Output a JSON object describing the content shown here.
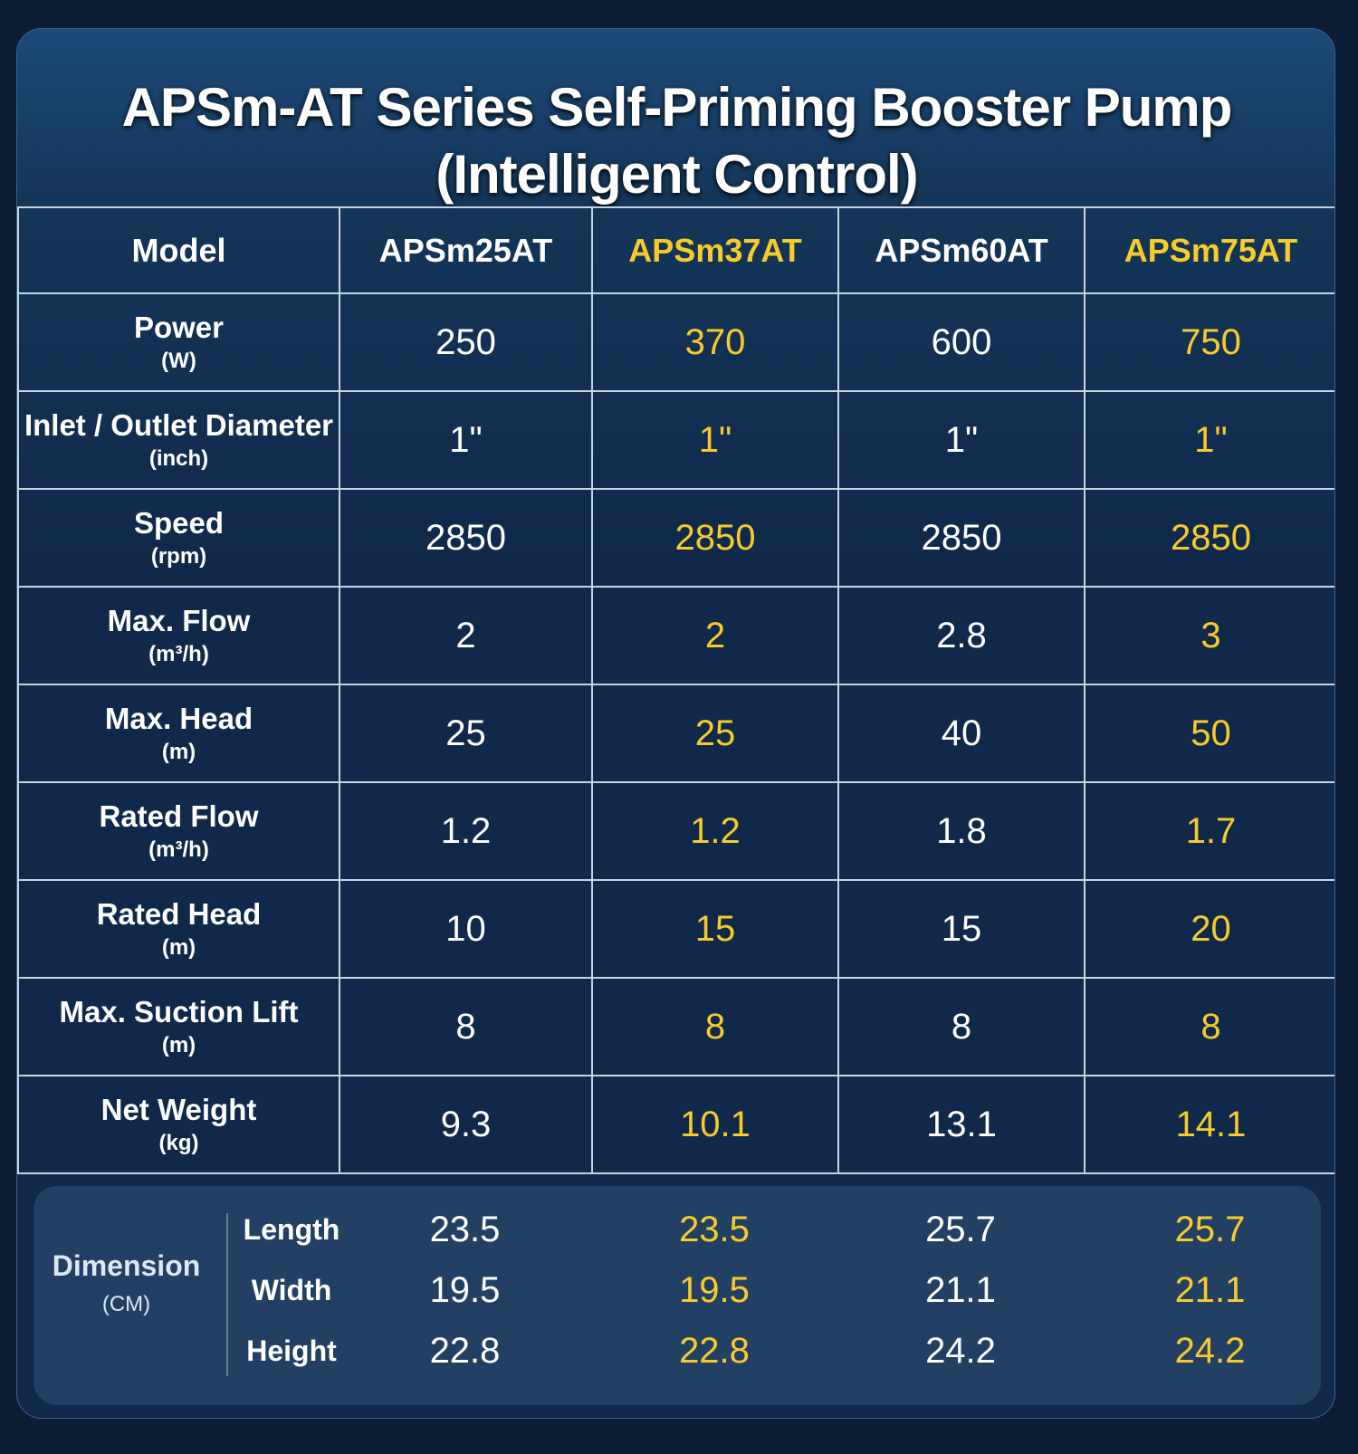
{
  "header": {
    "title_line1": "APSm-AT Series Self-Priming Booster Pump",
    "title_line2": "(Intelligent Control)"
  },
  "table": {
    "columns": [
      "Model",
      "APSm25AT",
      "APSm37AT",
      "APSm60AT",
      "APSm75AT"
    ],
    "rows": [
      {
        "label": "Power",
        "unit": "(W)",
        "values": [
          250,
          370,
          600,
          750
        ]
      },
      {
        "label": "Inlet / Outlet Diameter",
        "unit": "(inch)",
        "values": [
          "1\"",
          "1\"",
          "1\"",
          "1\""
        ]
      },
      {
        "label": "Speed",
        "unit": "(rpm)",
        "values": [
          2850,
          2850,
          2850,
          2850
        ]
      },
      {
        "label": "Max. Flow",
        "unit": "(m³/h)",
        "values": [
          2,
          2,
          2.8,
          3
        ]
      },
      {
        "label": "Max. Head",
        "unit": "(m)",
        "values": [
          25,
          25,
          40,
          50
        ]
      },
      {
        "label": "Rated Flow",
        "unit": "(m³/h)",
        "values": [
          1.2,
          1.2,
          1.8,
          1.7
        ]
      },
      {
        "label": "Rated Head",
        "unit": "(m)",
        "values": [
          10,
          15,
          15,
          20
        ]
      },
      {
        "label": "Max. Suction Lift",
        "unit": "(m)",
        "values": [
          8,
          8,
          8,
          8
        ]
      },
      {
        "label": "Net Weight",
        "unit": "(kg)",
        "values": [
          9.3,
          10.1,
          13.1,
          14.1
        ]
      }
    ]
  },
  "dimension": {
    "label": "Dimension",
    "unit": "(CM)",
    "rows": [
      {
        "label": "Length",
        "values": [
          23.5,
          23.5,
          25.7,
          25.7
        ]
      },
      {
        "label": "Width",
        "values": [
          19.5,
          19.5,
          21.1,
          21.1
        ]
      },
      {
        "label": "Height",
        "values": [
          22.8,
          22.8,
          24.2,
          24.2
        ]
      }
    ]
  }
}
